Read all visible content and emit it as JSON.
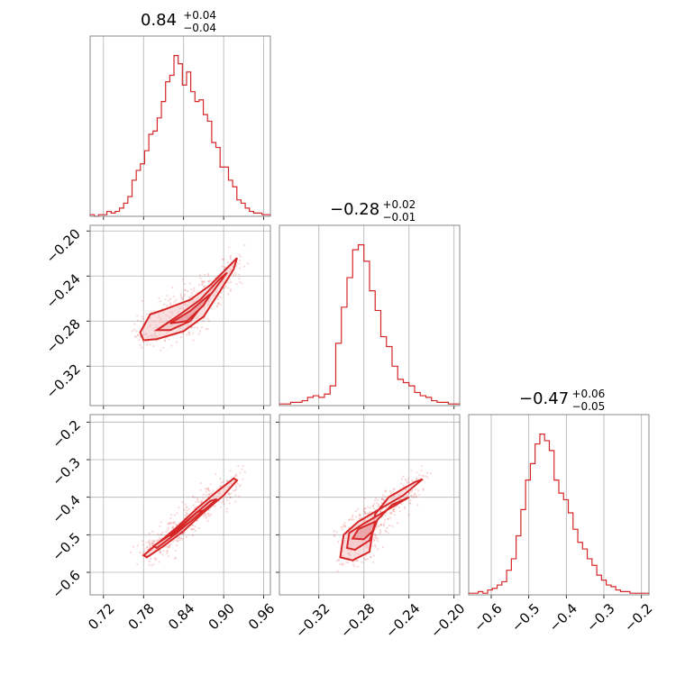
{
  "chart_data": {
    "type": "corner",
    "color": "#d62728",
    "fill_color": "#f4c7c8",
    "grid": true,
    "titles": [
      {
        "main": "0.84",
        "plus": "+0.04",
        "minus": "−0.04"
      },
      {
        "main": "−0.28",
        "plus": "+0.02",
        "minus": "−0.01"
      },
      {
        "main": "−0.47",
        "plus": "+0.06",
        "minus": "−0.05"
      }
    ],
    "parameters": [
      {
        "range": [
          0.7,
          0.97
        ],
        "ticks": [
          0.72,
          0.78,
          0.84,
          0.9,
          0.96
        ],
        "tick_labels": [
          "0.72",
          "0.78",
          "0.84",
          "0.90",
          "0.96"
        ]
      },
      {
        "range": [
          -0.355,
          -0.195
        ],
        "ticks": [
          -0.32,
          -0.28,
          -0.24,
          -0.2
        ],
        "tick_labels": [
          "−0.32",
          "−0.28",
          "−0.24",
          "−0.20"
        ]
      },
      {
        "range": [
          -0.66,
          -0.18
        ],
        "ticks": [
          -0.6,
          -0.5,
          -0.4,
          -0.3,
          -0.2
        ],
        "tick_labels": [
          "−0.6",
          "−0.5",
          "−0.4",
          "−0.3",
          "−0.2"
        ]
      }
    ],
    "histograms": [
      [
        0.01,
        0.0,
        0.01,
        0.01,
        0.03,
        0.02,
        0.03,
        0.05,
        0.08,
        0.12,
        0.22,
        0.28,
        0.32,
        0.4,
        0.5,
        0.52,
        0.6,
        0.7,
        0.82,
        0.86,
        0.98,
        0.93,
        0.8,
        0.88,
        0.76,
        0.7,
        0.71,
        0.62,
        0.58,
        0.45,
        0.42,
        0.3,
        0.3,
        0.22,
        0.18,
        0.1,
        0.08,
        0.05,
        0.03,
        0.02,
        0.02,
        0.01,
        0.01
      ],
      [
        0.01,
        0.01,
        0.02,
        0.02,
        0.03,
        0.05,
        0.06,
        0.05,
        0.07,
        0.12,
        0.38,
        0.6,
        0.78,
        0.95,
        0.98,
        0.88,
        0.7,
        0.58,
        0.42,
        0.36,
        0.24,
        0.16,
        0.14,
        0.12,
        0.08,
        0.06,
        0.05,
        0.03,
        0.02,
        0.02,
        0.01,
        0.01
      ],
      [
        0.01,
        0.01,
        0.02,
        0.01,
        0.03,
        0.04,
        0.06,
        0.08,
        0.15,
        0.22,
        0.36,
        0.52,
        0.7,
        0.8,
        0.92,
        0.98,
        0.94,
        0.88,
        0.7,
        0.62,
        0.58,
        0.5,
        0.4,
        0.32,
        0.28,
        0.22,
        0.18,
        0.12,
        0.09,
        0.06,
        0.05,
        0.03,
        0.02,
        0.02,
        0.01,
        0.01,
        0.01,
        0.01
      ]
    ],
    "contours": [
      {
        "x": 0,
        "y": 1,
        "outer": [
          [
            0.775,
            -0.29
          ],
          [
            0.79,
            -0.274
          ],
          [
            0.81,
            -0.27
          ],
          [
            0.85,
            -0.261
          ],
          [
            0.88,
            -0.248
          ],
          [
            0.905,
            -0.233
          ],
          [
            0.92,
            -0.224
          ],
          [
            0.915,
            -0.234
          ],
          [
            0.895,
            -0.253
          ],
          [
            0.87,
            -0.276
          ],
          [
            0.84,
            -0.289
          ],
          [
            0.8,
            -0.296
          ],
          [
            0.78,
            -0.297
          ]
        ],
        "mid": [
          [
            0.8,
            -0.288
          ],
          [
            0.83,
            -0.276
          ],
          [
            0.865,
            -0.261
          ],
          [
            0.895,
            -0.242
          ],
          [
            0.905,
            -0.237
          ],
          [
            0.885,
            -0.253
          ],
          [
            0.85,
            -0.28
          ],
          [
            0.82,
            -0.288
          ]
        ],
        "inner": [
          [
            0.82,
            -0.282
          ],
          [
            0.85,
            -0.271
          ],
          [
            0.88,
            -0.256
          ],
          [
            0.87,
            -0.266
          ],
          [
            0.845,
            -0.28
          ]
        ]
      },
      {
        "x": 0,
        "y": 2,
        "outer": [
          [
            0.785,
            -0.56
          ],
          [
            0.81,
            -0.53
          ],
          [
            0.84,
            -0.49
          ],
          [
            0.87,
            -0.44
          ],
          [
            0.9,
            -0.395
          ],
          [
            0.92,
            -0.355
          ],
          [
            0.915,
            -0.35
          ],
          [
            0.89,
            -0.385
          ],
          [
            0.86,
            -0.43
          ],
          [
            0.83,
            -0.48
          ],
          [
            0.8,
            -0.525
          ],
          [
            0.78,
            -0.555
          ]
        ],
        "mid": [
          [
            0.8,
            -0.535
          ],
          [
            0.83,
            -0.495
          ],
          [
            0.86,
            -0.45
          ],
          [
            0.89,
            -0.405
          ],
          [
            0.88,
            -0.41
          ],
          [
            0.85,
            -0.455
          ],
          [
            0.82,
            -0.5
          ],
          [
            0.795,
            -0.53
          ]
        ],
        "inner": [
          [
            0.82,
            -0.505
          ],
          [
            0.85,
            -0.465
          ],
          [
            0.87,
            -0.435
          ],
          [
            0.86,
            -0.44
          ],
          [
            0.835,
            -0.48
          ]
        ]
      },
      {
        "x": 1,
        "y": 2,
        "outer": [
          [
            -0.301,
            -0.56
          ],
          [
            -0.298,
            -0.5
          ],
          [
            -0.285,
            -0.465
          ],
          [
            -0.265,
            -0.43
          ],
          [
            -0.245,
            -0.395
          ],
          [
            -0.228,
            -0.352
          ],
          [
            -0.235,
            -0.36
          ],
          [
            -0.258,
            -0.4
          ],
          [
            -0.27,
            -0.445
          ],
          [
            -0.272,
            -0.485
          ],
          [
            -0.275,
            -0.545
          ],
          [
            -0.29,
            -0.568
          ]
        ],
        "mid": [
          [
            -0.295,
            -0.535
          ],
          [
            -0.293,
            -0.495
          ],
          [
            -0.28,
            -0.47
          ],
          [
            -0.26,
            -0.435
          ],
          [
            -0.24,
            -0.4
          ],
          [
            -0.255,
            -0.42
          ],
          [
            -0.268,
            -0.46
          ],
          [
            -0.275,
            -0.515
          ],
          [
            -0.288,
            -0.54
          ]
        ],
        "inner": [
          [
            -0.29,
            -0.51
          ],
          [
            -0.285,
            -0.485
          ],
          [
            -0.27,
            -0.465
          ],
          [
            -0.272,
            -0.49
          ],
          [
            -0.28,
            -0.512
          ]
        ]
      }
    ]
  }
}
